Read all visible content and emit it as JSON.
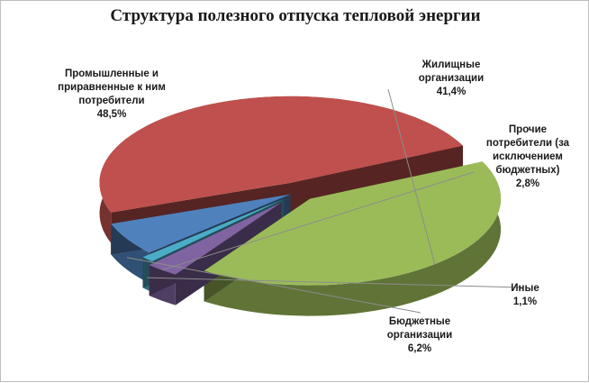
{
  "chart_data": {
    "type": "pie",
    "title": "Структура полезного отпуска тепловой энергии",
    "slices": [
      {
        "label_lines": [
          "Промышленные и",
          "приравненные к ним",
          "потребители"
        ],
        "value": 48.5,
        "value_text": "48,5%",
        "color": "#c0504d"
      },
      {
        "label_lines": [
          "Жилищные",
          "организации"
        ],
        "value": 41.4,
        "value_text": "41,4%",
        "color": "#9bbb59"
      },
      {
        "label_lines": [
          "Прочие",
          "потребители (за",
          "исключением",
          "бюджетных)"
        ],
        "value": 2.8,
        "value_text": "2,8%",
        "color": "#8064a2"
      },
      {
        "label_lines": [
          "Иные"
        ],
        "value": 1.1,
        "value_text": "1,1%",
        "color": "#4bacc6"
      },
      {
        "label_lines": [
          "Бюджетные",
          "организации"
        ],
        "value": 6.2,
        "value_text": "6,2%",
        "color": "#4f81bd"
      }
    ]
  }
}
